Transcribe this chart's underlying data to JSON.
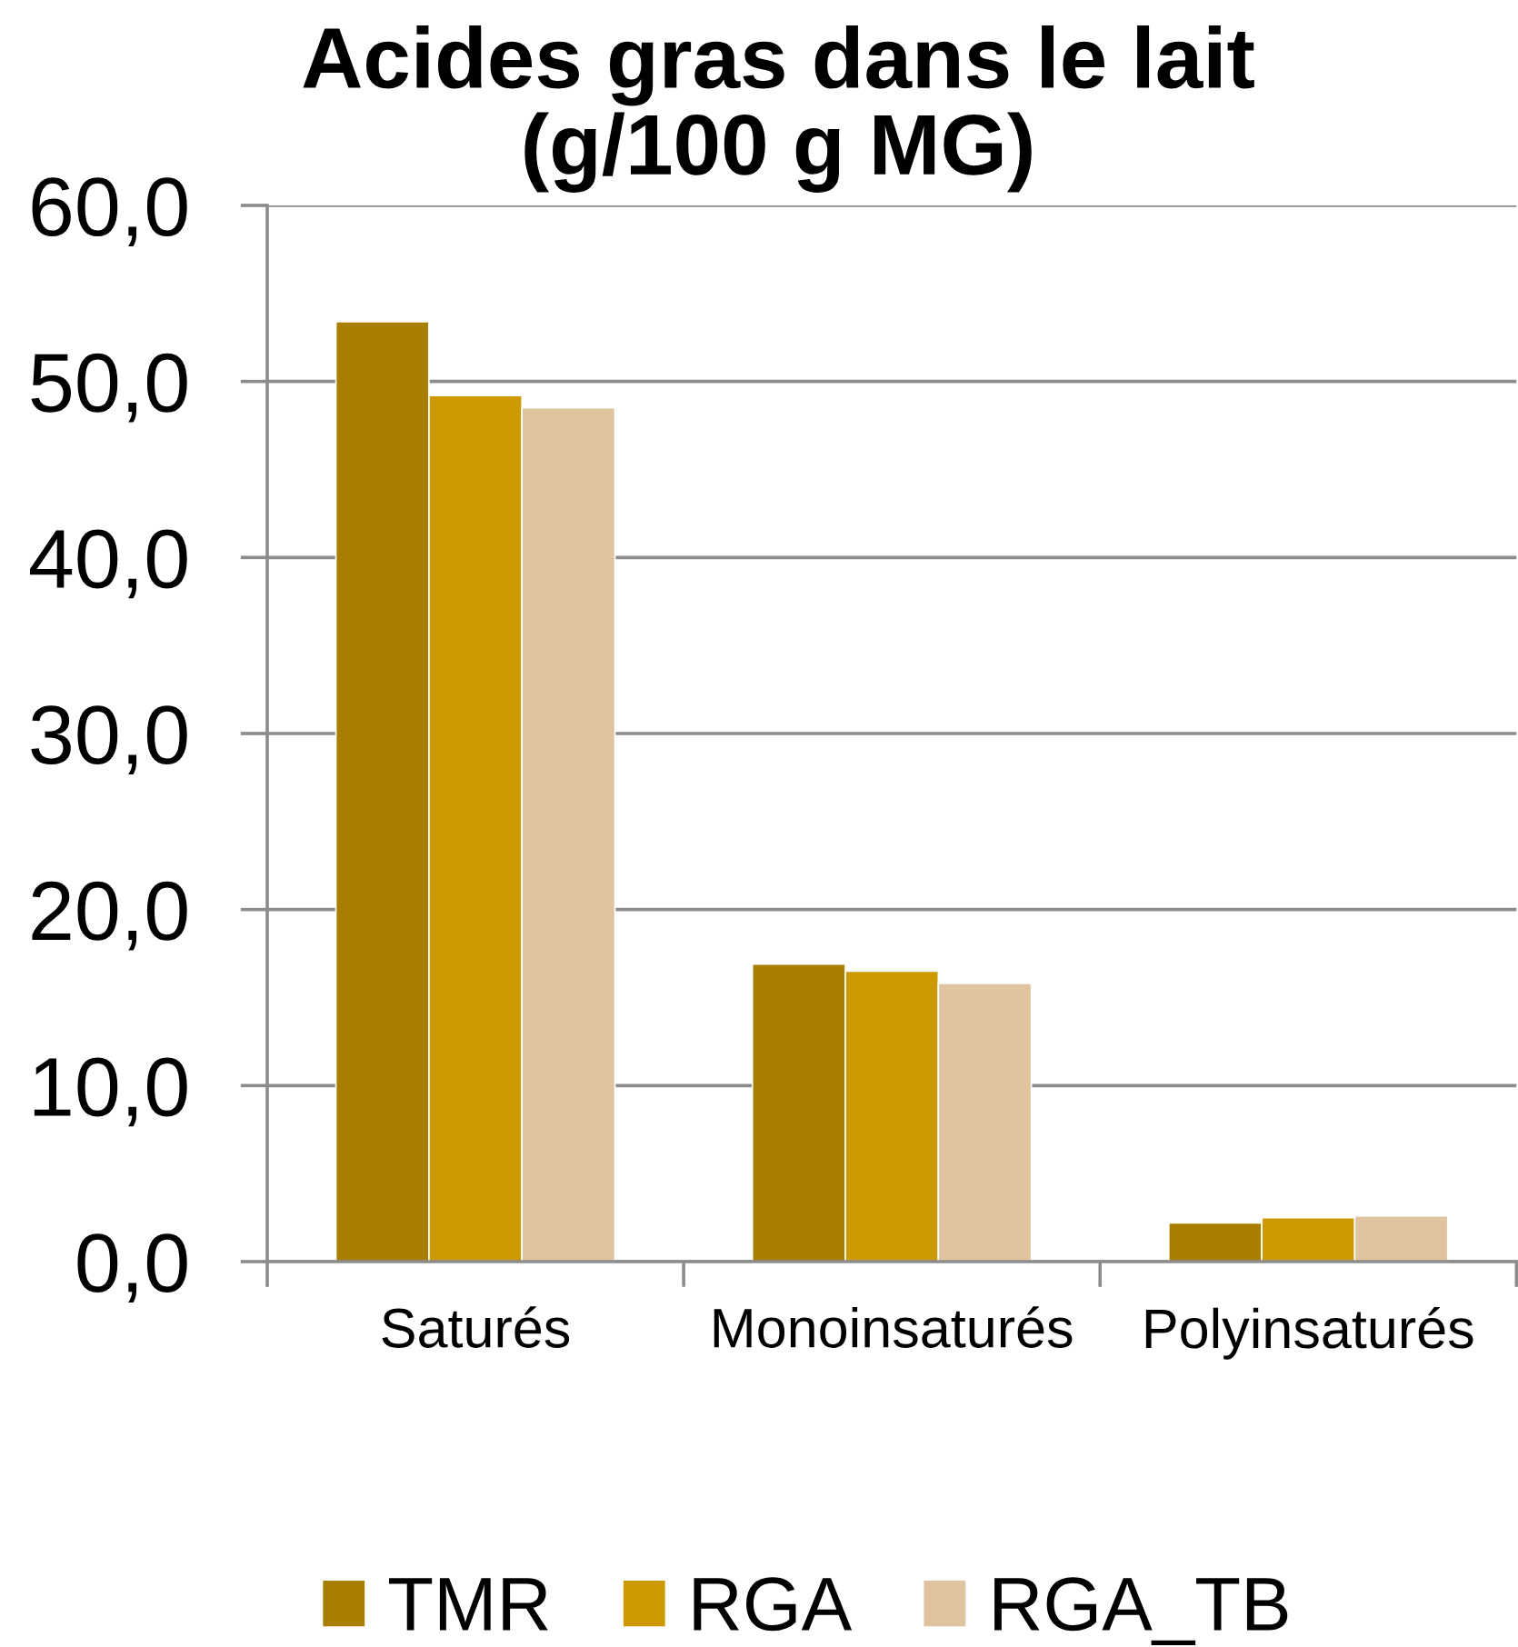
{
  "chart_data": {
    "type": "bar",
    "title": "Acides gras dans le lait\n(g/100 g MG)",
    "categories": [
      "Saturés",
      "Monoinsaturés",
      "Polyinsaturés"
    ],
    "series": [
      {
        "name": "TMR",
        "color": "#a87e00",
        "values": [
          53.4,
          16.9,
          2.2
        ]
      },
      {
        "name": "RGA",
        "color": "#cc9900",
        "values": [
          49.2,
          16.5,
          2.5
        ]
      },
      {
        "name": "RGA_TB",
        "color": "#e0c4a0",
        "values": [
          48.5,
          15.8,
          2.6
        ]
      }
    ],
    "ylim": [
      0,
      60
    ],
    "yticks": [
      {
        "value": 0,
        "label": "0,0"
      },
      {
        "value": 10,
        "label": "10,0"
      },
      {
        "value": 20,
        "label": "20,0"
      },
      {
        "value": 30,
        "label": "30,0"
      },
      {
        "value": 40,
        "label": "40,0"
      },
      {
        "value": 50,
        "label": "50,0"
      },
      {
        "value": 60,
        "label": "60,0"
      }
    ],
    "grid": "y",
    "legend": "bottom"
  }
}
